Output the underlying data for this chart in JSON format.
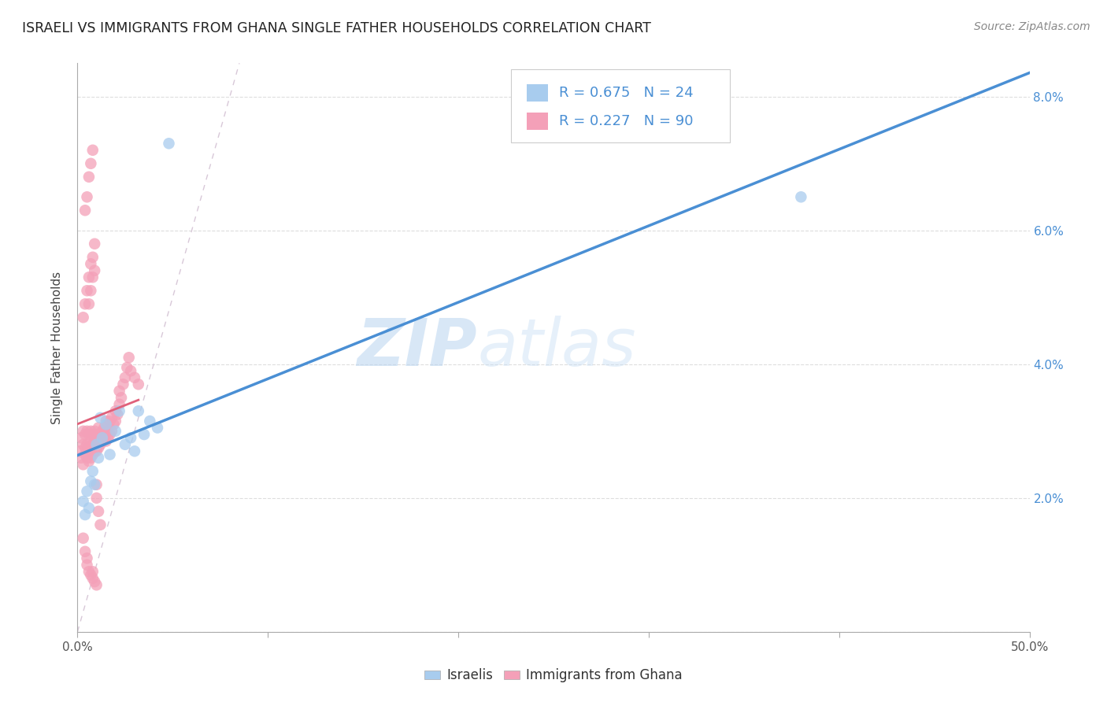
{
  "title": "ISRAELI VS IMMIGRANTS FROM GHANA SINGLE FATHER HOUSEHOLDS CORRELATION CHART",
  "source": "Source: ZipAtlas.com",
  "ylabel": "Single Father Households",
  "xlim": [
    0.0,
    0.5
  ],
  "ylim": [
    0.0,
    0.085
  ],
  "xtick_vals": [
    0.0,
    0.1,
    0.2,
    0.3,
    0.4,
    0.5
  ],
  "ytick_vals": [
    0.0,
    0.02,
    0.04,
    0.06,
    0.08
  ],
  "color_israelis": "#a8ccee",
  "color_ghana": "#f4a0b8",
  "color_line_israelis": "#4a8fd4",
  "color_line_ghana": "#e0607a",
  "color_diag": "#d8c8d8",
  "legend_blue": "#4a8fd4",
  "legend_dark": "#333333",
  "watermark_color": "#d0e4f5",
  "israelis_x": [
    0.003,
    0.004,
    0.005,
    0.006,
    0.007,
    0.008,
    0.009,
    0.01,
    0.011,
    0.012,
    0.013,
    0.015,
    0.017,
    0.02,
    0.022,
    0.025,
    0.028,
    0.03,
    0.032,
    0.035,
    0.038,
    0.042,
    0.048,
    0.38
  ],
  "israelis_y": [
    0.0195,
    0.0175,
    0.021,
    0.0185,
    0.0225,
    0.024,
    0.022,
    0.028,
    0.026,
    0.032,
    0.029,
    0.031,
    0.0265,
    0.03,
    0.033,
    0.028,
    0.029,
    0.027,
    0.033,
    0.0295,
    0.0315,
    0.0305,
    0.073,
    0.065
  ],
  "ghana_x": [
    0.001,
    0.002,
    0.002,
    0.003,
    0.003,
    0.003,
    0.004,
    0.004,
    0.004,
    0.005,
    0.005,
    0.005,
    0.006,
    0.006,
    0.006,
    0.007,
    0.007,
    0.007,
    0.007,
    0.008,
    0.008,
    0.008,
    0.009,
    0.009,
    0.009,
    0.01,
    0.01,
    0.01,
    0.011,
    0.011,
    0.011,
    0.012,
    0.012,
    0.013,
    0.013,
    0.014,
    0.014,
    0.015,
    0.015,
    0.015,
    0.016,
    0.016,
    0.017,
    0.017,
    0.018,
    0.018,
    0.019,
    0.02,
    0.02,
    0.021,
    0.022,
    0.022,
    0.023,
    0.024,
    0.025,
    0.026,
    0.027,
    0.028,
    0.03,
    0.032,
    0.003,
    0.004,
    0.005,
    0.006,
    0.007,
    0.008,
    0.006,
    0.007,
    0.008,
    0.009,
    0.004,
    0.005,
    0.006,
    0.007,
    0.008,
    0.009,
    0.01,
    0.01,
    0.011,
    0.012,
    0.003,
    0.004,
    0.005,
    0.005,
    0.006,
    0.007,
    0.008,
    0.008,
    0.009,
    0.01
  ],
  "ghana_y": [
    0.027,
    0.026,
    0.029,
    0.025,
    0.028,
    0.03,
    0.0265,
    0.0275,
    0.0295,
    0.026,
    0.028,
    0.03,
    0.0255,
    0.0275,
    0.0295,
    0.026,
    0.027,
    0.0285,
    0.03,
    0.0265,
    0.028,
    0.0295,
    0.027,
    0.0285,
    0.03,
    0.027,
    0.0285,
    0.0295,
    0.0275,
    0.029,
    0.0305,
    0.028,
    0.0295,
    0.0285,
    0.03,
    0.029,
    0.0305,
    0.0285,
    0.03,
    0.0315,
    0.029,
    0.031,
    0.0295,
    0.0315,
    0.03,
    0.032,
    0.031,
    0.0315,
    0.033,
    0.0325,
    0.034,
    0.036,
    0.035,
    0.037,
    0.038,
    0.0395,
    0.041,
    0.039,
    0.038,
    0.037,
    0.047,
    0.049,
    0.051,
    0.053,
    0.055,
    0.056,
    0.049,
    0.051,
    0.053,
    0.054,
    0.063,
    0.065,
    0.068,
    0.07,
    0.072,
    0.058,
    0.022,
    0.02,
    0.018,
    0.016,
    0.014,
    0.012,
    0.011,
    0.01,
    0.009,
    0.0085,
    0.009,
    0.008,
    0.0075,
    0.007
  ]
}
